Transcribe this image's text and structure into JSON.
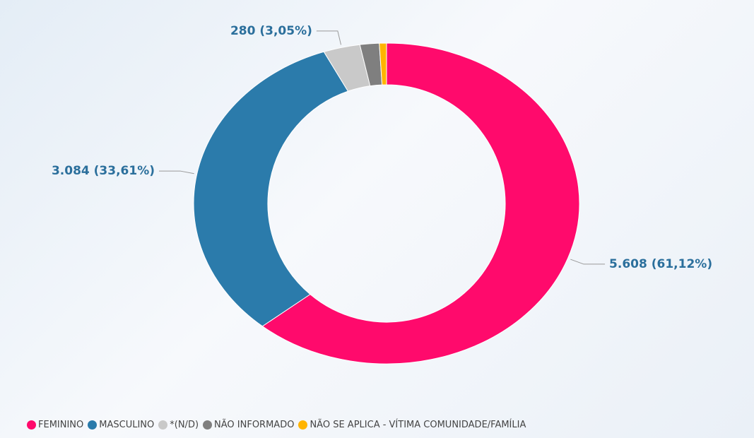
{
  "chart_data": {
    "type": "donut",
    "categories": [
      "FEMININO",
      "MASCULINO",
      "*(N/D)",
      "NÃO INFORMADO",
      "NÃO SE APLICA - VÍTIMA COMUNIDADE/FAMÍLIA"
    ],
    "values": [
      5608,
      3084,
      280,
      148,
      55
    ],
    "value_labels": [
      "5.608 (61,12%)",
      "3.084 (33,61%)",
      "280 (3,05%)",
      null,
      null
    ],
    "colors": [
      "#ff0a6c",
      "#2b7bab",
      "#c9c9c9",
      "#7f7f7f",
      "#ffb400"
    ],
    "legend": "bottom"
  }
}
